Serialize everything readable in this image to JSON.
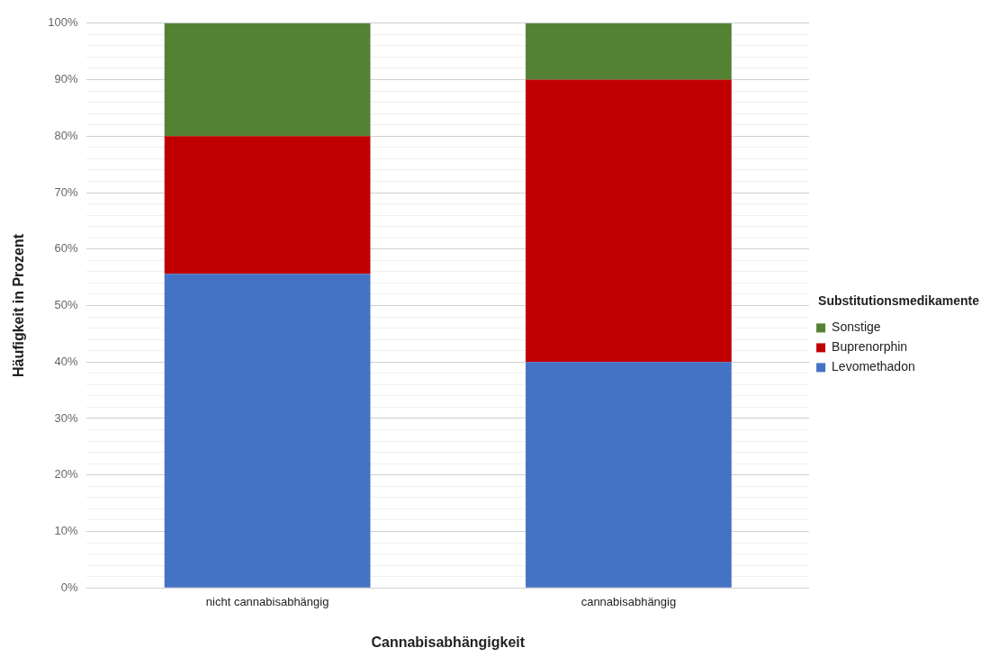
{
  "chart_data": {
    "type": "bar",
    "stacked": true,
    "xlabel": "Cannabisabhängigkeit",
    "ylabel": "Häufigkeit in Prozent",
    "legend_title": "Substitutionsmedikamente",
    "legend": "right",
    "grid": "y",
    "categories": [
      "nicht cannabisabhängig",
      "cannabisabhängig"
    ],
    "series": [
      {
        "name": "Levomethadon",
        "color": "#4472c4",
        "values": [
          55.6,
          40
        ]
      },
      {
        "name": "Buprenorphin",
        "color": "#c00000",
        "values": [
          24.4,
          50
        ]
      },
      {
        "name": "Sonstige",
        "color": "#548235",
        "values": [
          20,
          10
        ]
      }
    ],
    "ylim": [
      0,
      100
    ],
    "yticks": [
      {
        "value": 0,
        "label": "0%"
      },
      {
        "value": 2,
        "label": null
      },
      {
        "value": 4,
        "label": null
      },
      {
        "value": 6,
        "label": null
      },
      {
        "value": 8,
        "label": null
      },
      {
        "value": 10,
        "label": "10%"
      },
      {
        "value": 12,
        "label": null
      },
      {
        "value": 14,
        "label": null
      },
      {
        "value": 16,
        "label": null
      },
      {
        "value": 18,
        "label": null
      },
      {
        "value": 20,
        "label": "20%"
      },
      {
        "value": 22,
        "label": null
      },
      {
        "value": 24,
        "label": null
      },
      {
        "value": 26,
        "label": null
      },
      {
        "value": 28,
        "label": null
      },
      {
        "value": 30,
        "label": "30%"
      },
      {
        "value": 32,
        "label": null
      },
      {
        "value": 34,
        "label": null
      },
      {
        "value": 36,
        "label": null
      },
      {
        "value": 38,
        "label": null
      },
      {
        "value": 40,
        "label": "40%"
      },
      {
        "value": 42,
        "label": null
      },
      {
        "value": 44,
        "label": null
      },
      {
        "value": 46,
        "label": null
      },
      {
        "value": 48,
        "label": null
      },
      {
        "value": 50,
        "label": "50%"
      },
      {
        "value": 52,
        "label": null
      },
      {
        "value": 54,
        "label": null
      },
      {
        "value": 56,
        "label": null
      },
      {
        "value": 58,
        "label": null
      },
      {
        "value": 60,
        "label": "60%"
      },
      {
        "value": 62,
        "label": null
      },
      {
        "value": 64,
        "label": null
      },
      {
        "value": 66,
        "label": null
      },
      {
        "value": 68,
        "label": null
      },
      {
        "value": 70,
        "label": "70%"
      },
      {
        "value": 72,
        "label": null
      },
      {
        "value": 74,
        "label": null
      },
      {
        "value": 76,
        "label": null
      },
      {
        "value": 78,
        "label": null
      },
      {
        "value": 80,
        "label": "80%"
      },
      {
        "value": 82,
        "label": null
      },
      {
        "value": 84,
        "label": null
      },
      {
        "value": 86,
        "label": null
      },
      {
        "value": 88,
        "label": null
      },
      {
        "value": 90,
        "label": "90%"
      },
      {
        "value": 92,
        "label": null
      },
      {
        "value": 94,
        "label": null
      },
      {
        "value": 96,
        "label": null
      },
      {
        "value": 98,
        "label": null
      },
      {
        "value": 100,
        "label": "100%"
      }
    ]
  }
}
